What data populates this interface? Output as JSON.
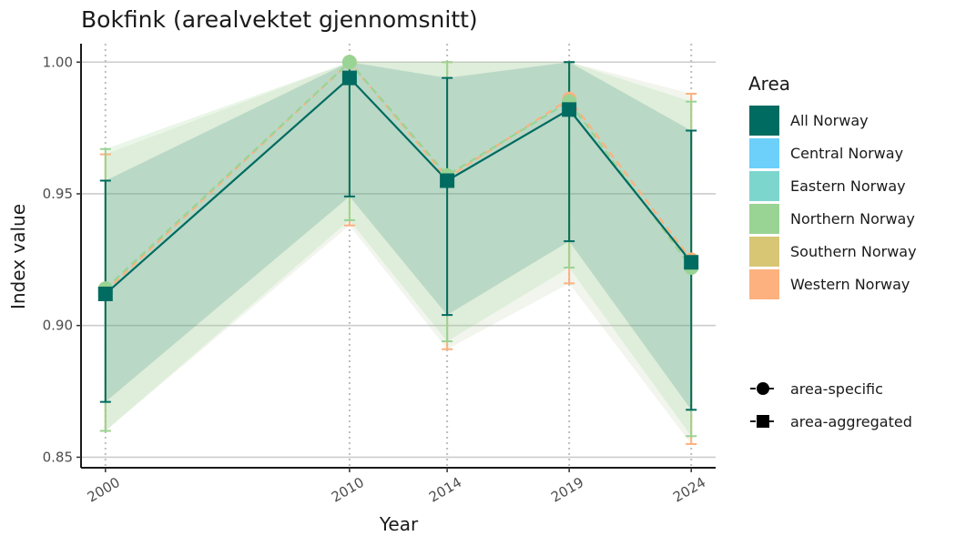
{
  "chart_data": {
    "type": "line",
    "title": "Bokfink (arealvektet gjennomsnitt)",
    "xlabel": "Year",
    "ylabel": "Index value",
    "x": [
      2000,
      2010,
      2014,
      2019,
      2024
    ],
    "xlim": [
      1999,
      2025
    ],
    "ylim": [
      0.846,
      1.007
    ],
    "yticks": [
      0.85,
      0.9,
      0.95,
      1.0
    ],
    "ytick_labels": [
      "0.85",
      "0.90",
      "0.95",
      "1.00"
    ],
    "xtick_labels": [
      "2000",
      "2010",
      "2014",
      "2019",
      "2024"
    ],
    "grid": "horizontal major + dotted vertical at data years",
    "series": [
      {
        "name": "All Norway",
        "color": "#006b60",
        "marker": "square",
        "line": "solid",
        "values": [
          0.912,
          0.994,
          0.955,
          0.982,
          0.924
        ],
        "lower": [
          0.871,
          0.949,
          0.904,
          0.932,
          0.868
        ],
        "upper": [
          0.955,
          1.0,
          0.994,
          1.0,
          0.974
        ]
      },
      {
        "name": "Northern Norway",
        "color": "#99d494",
        "marker": "circle",
        "line": "dashed",
        "values": [
          0.914,
          1.0,
          0.957,
          0.985,
          0.922
        ],
        "lower": [
          0.86,
          0.94,
          0.894,
          0.922,
          0.858
        ],
        "upper": [
          0.967,
          1.0,
          1.0,
          1.0,
          0.985
        ]
      },
      {
        "name": "Western Norway",
        "color": "#fdb17e",
        "marker": "circle",
        "line": "dashed",
        "values": [
          0.913,
          1.0,
          0.956,
          0.986,
          0.925
        ],
        "lower": [
          0.86,
          0.938,
          0.891,
          0.916,
          0.855
        ],
        "upper": [
          0.965,
          1.0,
          1.0,
          1.0,
          0.988
        ]
      }
    ],
    "legend": {
      "title": "Area",
      "position": "right",
      "items": [
        {
          "label": "All Norway",
          "color": "#006b60"
        },
        {
          "label": "Central Norway",
          "color": "#6cd0fb"
        },
        {
          "label": "Eastern Norway",
          "color": "#7dd6ce"
        },
        {
          "label": "Northern Norway",
          "color": "#99d494"
        },
        {
          "label": "Southern Norway",
          "color": "#d8c675"
        },
        {
          "label": "Western Norway",
          "color": "#fdb17e"
        }
      ],
      "shape_items": [
        {
          "label": "area-specific",
          "shape": "circle"
        },
        {
          "label": "area-aggregated",
          "shape": "square"
        }
      ]
    }
  }
}
